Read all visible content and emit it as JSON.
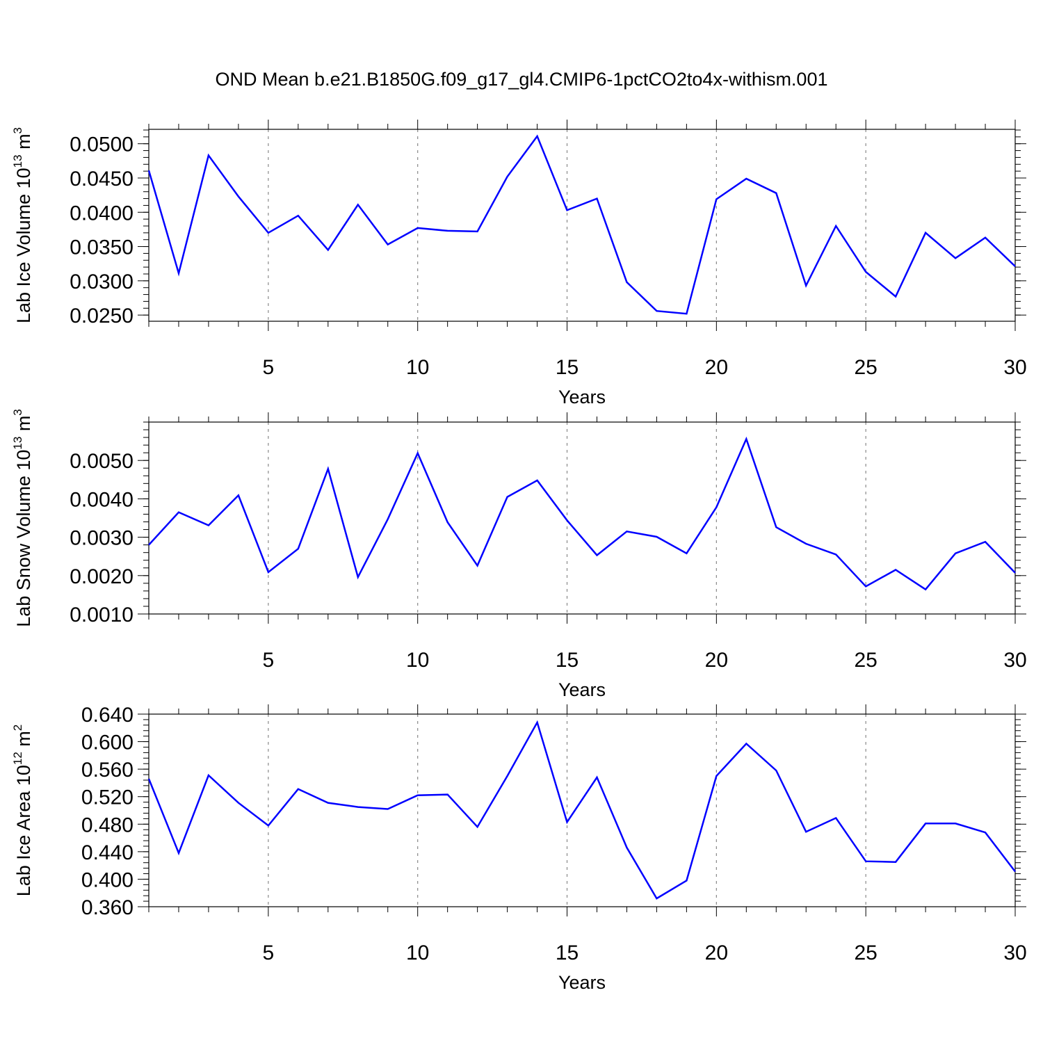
{
  "title": "OND Mean b.e21.B1850G.f09_g17_gl4.CMIP6-1pctCO2to4x-withism.001",
  "colors": {
    "series": "#0000ff",
    "axis": "#000000",
    "grid": "#888888"
  },
  "chart_data": [
    {
      "type": "line",
      "xlabel": "Years",
      "ylabel": "Lab Ice Volume 10",
      "ylabel_exp": "13",
      "ylabel_unit": " m",
      "ylabel_unit_exp": "3",
      "xlim": [
        1,
        30
      ],
      "ylim": [
        0.0241,
        0.0521
      ],
      "x_ticks": [
        5,
        10,
        15,
        20,
        25,
        30
      ],
      "y_ticks": [
        0.025,
        0.03,
        0.035,
        0.04,
        0.045,
        0.05
      ],
      "y_tick_labels": [
        "0.0250",
        "0.0300",
        "0.0350",
        "0.0400",
        "0.0450",
        "0.0500"
      ],
      "y_minor_step": 0.001,
      "vgrid": [
        5,
        10,
        15,
        20,
        25
      ],
      "x": [
        1,
        2,
        3,
        4,
        5,
        6,
        7,
        8,
        9,
        10,
        11,
        12,
        13,
        14,
        15,
        16,
        17,
        18,
        19,
        20,
        21,
        22,
        23,
        24,
        25,
        26,
        27,
        28,
        29,
        30
      ],
      "values": [
        0.0461,
        0.0311,
        0.0483,
        0.0423,
        0.037,
        0.0395,
        0.0345,
        0.0411,
        0.0353,
        0.0377,
        0.0373,
        0.0372,
        0.0452,
        0.0511,
        0.0403,
        0.042,
        0.0298,
        0.0256,
        0.0252,
        0.0419,
        0.0449,
        0.0428,
        0.0293,
        0.038,
        0.0313,
        0.0277,
        0.037,
        0.0333,
        0.0363,
        0.0321
      ]
    },
    {
      "type": "line",
      "xlabel": "Years",
      "ylabel": "Lab Snow Volume 10",
      "ylabel_exp": "13",
      "ylabel_unit": " m",
      "ylabel_unit_exp": "3",
      "xlim": [
        1,
        30
      ],
      "ylim": [
        0.001,
        0.006
      ],
      "x_ticks": [
        5,
        10,
        15,
        20,
        25,
        30
      ],
      "y_ticks": [
        0.001,
        0.002,
        0.003,
        0.004,
        0.005
      ],
      "y_tick_labels": [
        "0.0010",
        "0.0020",
        "0.0030",
        "0.0040",
        "0.0050"
      ],
      "y_minor_step": 0.0002,
      "vgrid": [
        5,
        10,
        15,
        20,
        25
      ],
      "x": [
        1,
        2,
        3,
        4,
        5,
        6,
        7,
        8,
        9,
        10,
        11,
        12,
        13,
        14,
        15,
        16,
        17,
        18,
        19,
        20,
        21,
        22,
        23,
        24,
        25,
        26,
        27,
        28,
        29,
        30
      ],
      "values": [
        0.0028,
        0.00365,
        0.00331,
        0.00409,
        0.00209,
        0.0027,
        0.00478,
        0.00196,
        0.00347,
        0.00519,
        0.00339,
        0.00226,
        0.00405,
        0.00448,
        0.00344,
        0.00253,
        0.00315,
        0.00301,
        0.00258,
        0.00378,
        0.00556,
        0.00326,
        0.00283,
        0.00255,
        0.00172,
        0.00215,
        0.00164,
        0.00258,
        0.00288,
        0.00207
      ]
    },
    {
      "type": "line",
      "xlabel": "Years",
      "ylabel": "Lab Ice Area 10",
      "ylabel_exp": "12",
      "ylabel_unit": " m",
      "ylabel_unit_exp": "2",
      "xlim": [
        1,
        30
      ],
      "ylim": [
        0.36,
        0.64
      ],
      "x_ticks": [
        5,
        10,
        15,
        20,
        25,
        30
      ],
      "y_ticks": [
        0.36,
        0.4,
        0.44,
        0.48,
        0.52,
        0.56,
        0.6,
        0.64
      ],
      "y_tick_labels": [
        "0.360",
        "0.400",
        "0.440",
        "0.480",
        "0.520",
        "0.560",
        "0.600",
        "0.640"
      ],
      "y_minor_step": 0.008,
      "vgrid": [
        5,
        10,
        15,
        20,
        25
      ],
      "x": [
        1,
        2,
        3,
        4,
        5,
        6,
        7,
        8,
        9,
        10,
        11,
        12,
        13,
        14,
        15,
        16,
        17,
        18,
        19,
        20,
        21,
        22,
        23,
        24,
        25,
        26,
        27,
        28,
        29,
        30
      ],
      "values": [
        0.546,
        0.438,
        0.551,
        0.511,
        0.478,
        0.531,
        0.511,
        0.505,
        0.502,
        0.522,
        0.523,
        0.476,
        0.55,
        0.628,
        0.483,
        0.548,
        0.446,
        0.372,
        0.398,
        0.55,
        0.597,
        0.558,
        0.469,
        0.489,
        0.426,
        0.425,
        0.481,
        0.481,
        0.468,
        0.411
      ]
    }
  ]
}
